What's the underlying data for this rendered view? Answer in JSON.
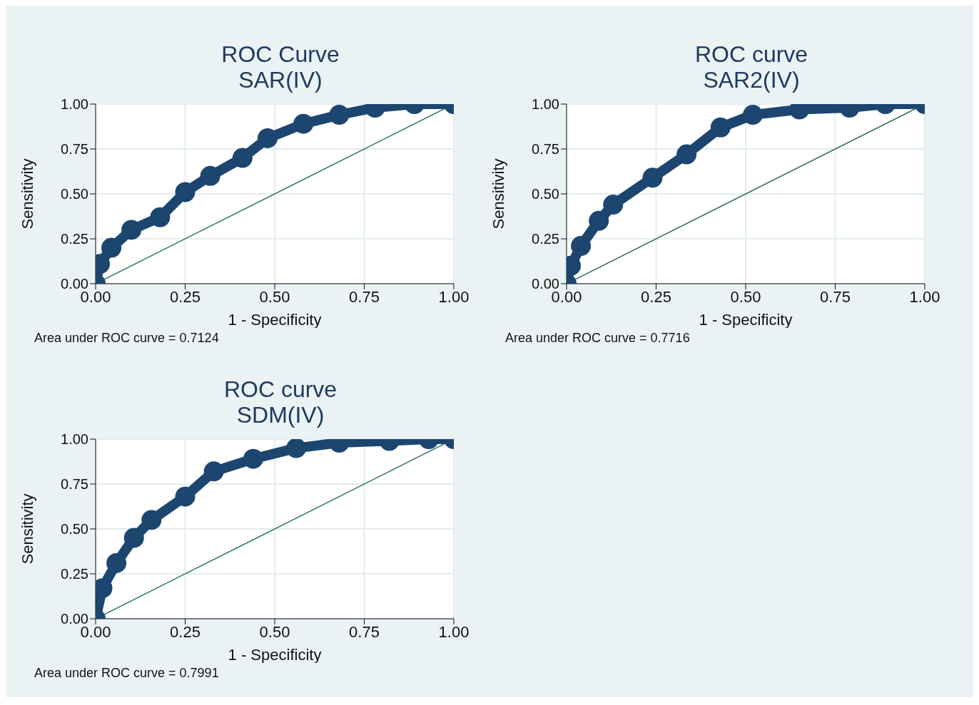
{
  "chart_data": [
    {
      "type": "line",
      "title": "ROC Curve",
      "subtitle": "SAR(IV)",
      "xlabel": "1 - Specificity",
      "ylabel": "Sensitivity",
      "xlim": [
        0,
        1
      ],
      "ylim": [
        0,
        1
      ],
      "grid": true,
      "xticks": [
        {
          "value": 0,
          "label": "0.00"
        },
        {
          "value": 0.25,
          "label": "0.25"
        },
        {
          "value": 0.5,
          "label": "0.50"
        },
        {
          "value": 0.75,
          "label": "0.75"
        },
        {
          "value": 1,
          "label": "1.00"
        }
      ],
      "yticks": [
        {
          "value": 0,
          "label": "0.00"
        },
        {
          "value": 0.25,
          "label": "0.25"
        },
        {
          "value": 0.5,
          "label": "0.50"
        },
        {
          "value": 0.75,
          "label": "0.75"
        },
        {
          "value": 1,
          "label": "1.00"
        }
      ],
      "series": [
        {
          "color": "#1c4670",
          "marker": "circle",
          "x": [
            0,
            0.012,
            0.044,
            0.1,
            0.18,
            0.25,
            0.32,
            0.41,
            0.48,
            0.58,
            0.68,
            0.78,
            0.89,
            1
          ],
          "values": [
            0,
            0.11,
            0.2,
            0.3,
            0.37,
            0.51,
            0.6,
            0.7,
            0.81,
            0.89,
            0.94,
            0.98,
            1,
            1
          ]
        },
        {
          "color": "#2e6b5a",
          "marker": "none",
          "x": [
            0,
            1
          ],
          "values": [
            0,
            1
          ]
        }
      ],
      "annotations": [
        "Area under ROC curve = 0.7124"
      ]
    },
    {
      "type": "line",
      "title": "ROC curve",
      "subtitle": "SAR2(IV)",
      "xlabel": "1 - Specificity",
      "ylabel": "Sensitivity",
      "xlim": [
        0,
        1
      ],
      "ylim": [
        0,
        1
      ],
      "grid": true,
      "xticks": [
        {
          "value": 0,
          "label": "0.00"
        },
        {
          "value": 0.25,
          "label": "0.25"
        },
        {
          "value": 0.5,
          "label": "0.50"
        },
        {
          "value": 0.75,
          "label": "0.75"
        },
        {
          "value": 1,
          "label": "1.00"
        }
      ],
      "yticks": [
        {
          "value": 0,
          "label": "0.00"
        },
        {
          "value": 0.25,
          "label": "0.25"
        },
        {
          "value": 0.5,
          "label": "0.50"
        },
        {
          "value": 0.75,
          "label": "0.75"
        },
        {
          "value": 1,
          "label": "1.00"
        }
      ],
      "series": [
        {
          "color": "#1c4670",
          "marker": "circle",
          "x": [
            0,
            0.012,
            0.04,
            0.09,
            0.13,
            0.24,
            0.335,
            0.43,
            0.52,
            0.65,
            0.79,
            0.89,
            1
          ],
          "values": [
            0,
            0.1,
            0.21,
            0.35,
            0.44,
            0.59,
            0.72,
            0.87,
            0.94,
            0.97,
            0.98,
            1,
            1
          ]
        },
        {
          "color": "#2e6b5a",
          "marker": "none",
          "x": [
            0,
            1
          ],
          "values": [
            0,
            1
          ]
        }
      ],
      "annotations": [
        "Area under ROC curve = 0.7716"
      ]
    },
    {
      "type": "line",
      "title": "ROC curve",
      "subtitle": "SDM(IV)",
      "xlabel": "1 - Specificity",
      "ylabel": "Sensitivity",
      "xlim": [
        0,
        1
      ],
      "ylim": [
        0,
        1
      ],
      "grid": true,
      "xticks": [
        {
          "value": 0,
          "label": "0.00"
        },
        {
          "value": 0.25,
          "label": "0.25"
        },
        {
          "value": 0.5,
          "label": "0.50"
        },
        {
          "value": 0.75,
          "label": "0.75"
        },
        {
          "value": 1,
          "label": "1.00"
        }
      ],
      "yticks": [
        {
          "value": 0,
          "label": "0.00"
        },
        {
          "value": 0.25,
          "label": "0.25"
        },
        {
          "value": 0.5,
          "label": "0.50"
        },
        {
          "value": 0.75,
          "label": "0.75"
        },
        {
          "value": 1,
          "label": "1.00"
        }
      ],
      "series": [
        {
          "color": "#1c4670",
          "marker": "circle",
          "x": [
            0,
            0.019,
            0.058,
            0.107,
            0.156,
            0.25,
            0.33,
            0.44,
            0.56,
            0.68,
            0.82,
            0.93,
            1
          ],
          "values": [
            0,
            0.17,
            0.31,
            0.45,
            0.55,
            0.68,
            0.82,
            0.89,
            0.95,
            0.98,
            0.99,
            1,
            1
          ]
        },
        {
          "color": "#2e6b5a",
          "marker": "none",
          "x": [
            0,
            1
          ],
          "values": [
            0,
            1
          ]
        }
      ],
      "annotations": [
        "Area under ROC curve = 0.7991"
      ]
    }
  ]
}
